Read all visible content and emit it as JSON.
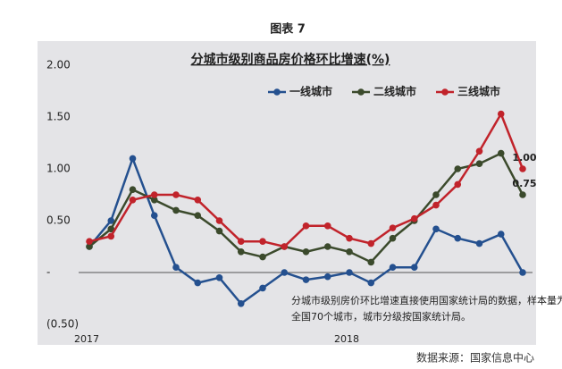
{
  "caption": "图表 7",
  "source": "数据来源：国家信息中心",
  "chart_data": {
    "type": "line",
    "title": "分城市级别商品房价格环比增速(%)",
    "categories": [
      "2017",
      null,
      null,
      null,
      null,
      null,
      null,
      null,
      null,
      null,
      null,
      null,
      "2018",
      null,
      null,
      null,
      null,
      null,
      null,
      null,
      null
    ],
    "series": [
      {
        "name": "一线城市",
        "color": "#24508f",
        "values": [
          0.25,
          0.5,
          1.1,
          0.55,
          0.05,
          -0.1,
          -0.05,
          -0.3,
          -0.15,
          0,
          -0.07,
          -0.04,
          0,
          -0.1,
          0.05,
          0.05,
          0.42,
          0.33,
          0.28,
          0.37,
          0
        ]
      },
      {
        "name": "二线城市",
        "color": "#3b4a2c",
        "values": [
          0.25,
          0.42,
          0.8,
          0.7,
          0.6,
          0.55,
          0.4,
          0.2,
          0.15,
          0.25,
          0.2,
          0.25,
          0.2,
          0.1,
          0.33,
          0.5,
          0.75,
          1.0,
          1.05,
          1.15,
          0.75
        ],
        "end_label": "0.75"
      },
      {
        "name": "三线城市",
        "color": "#c1232b",
        "values": [
          0.3,
          0.35,
          0.7,
          0.75,
          0.75,
          0.7,
          0.5,
          0.3,
          0.3,
          0.25,
          0.45,
          0.45,
          0.33,
          0.28,
          0.43,
          0.52,
          0.65,
          0.85,
          1.17,
          1.53,
          1.0
        ],
        "end_label": "1.00"
      }
    ],
    "ylim": [
      -0.5,
      2.0
    ],
    "yticks": [
      {
        "value": -0.5,
        "label": "(0.50)"
      },
      {
        "value": 0,
        "label": "-"
      },
      {
        "value": 0.5,
        "label": "0.50"
      },
      {
        "value": 1,
        "label": "1.00"
      },
      {
        "value": 1.5,
        "label": "1.50"
      },
      {
        "value": 2,
        "label": "2.00"
      }
    ],
    "legend": "top",
    "annotation": [
      "分城市级别房价环比增速直接使用国家统计局的数据，样本量为",
      "全国70个城市，城市分级按国家统计局。"
    ]
  }
}
